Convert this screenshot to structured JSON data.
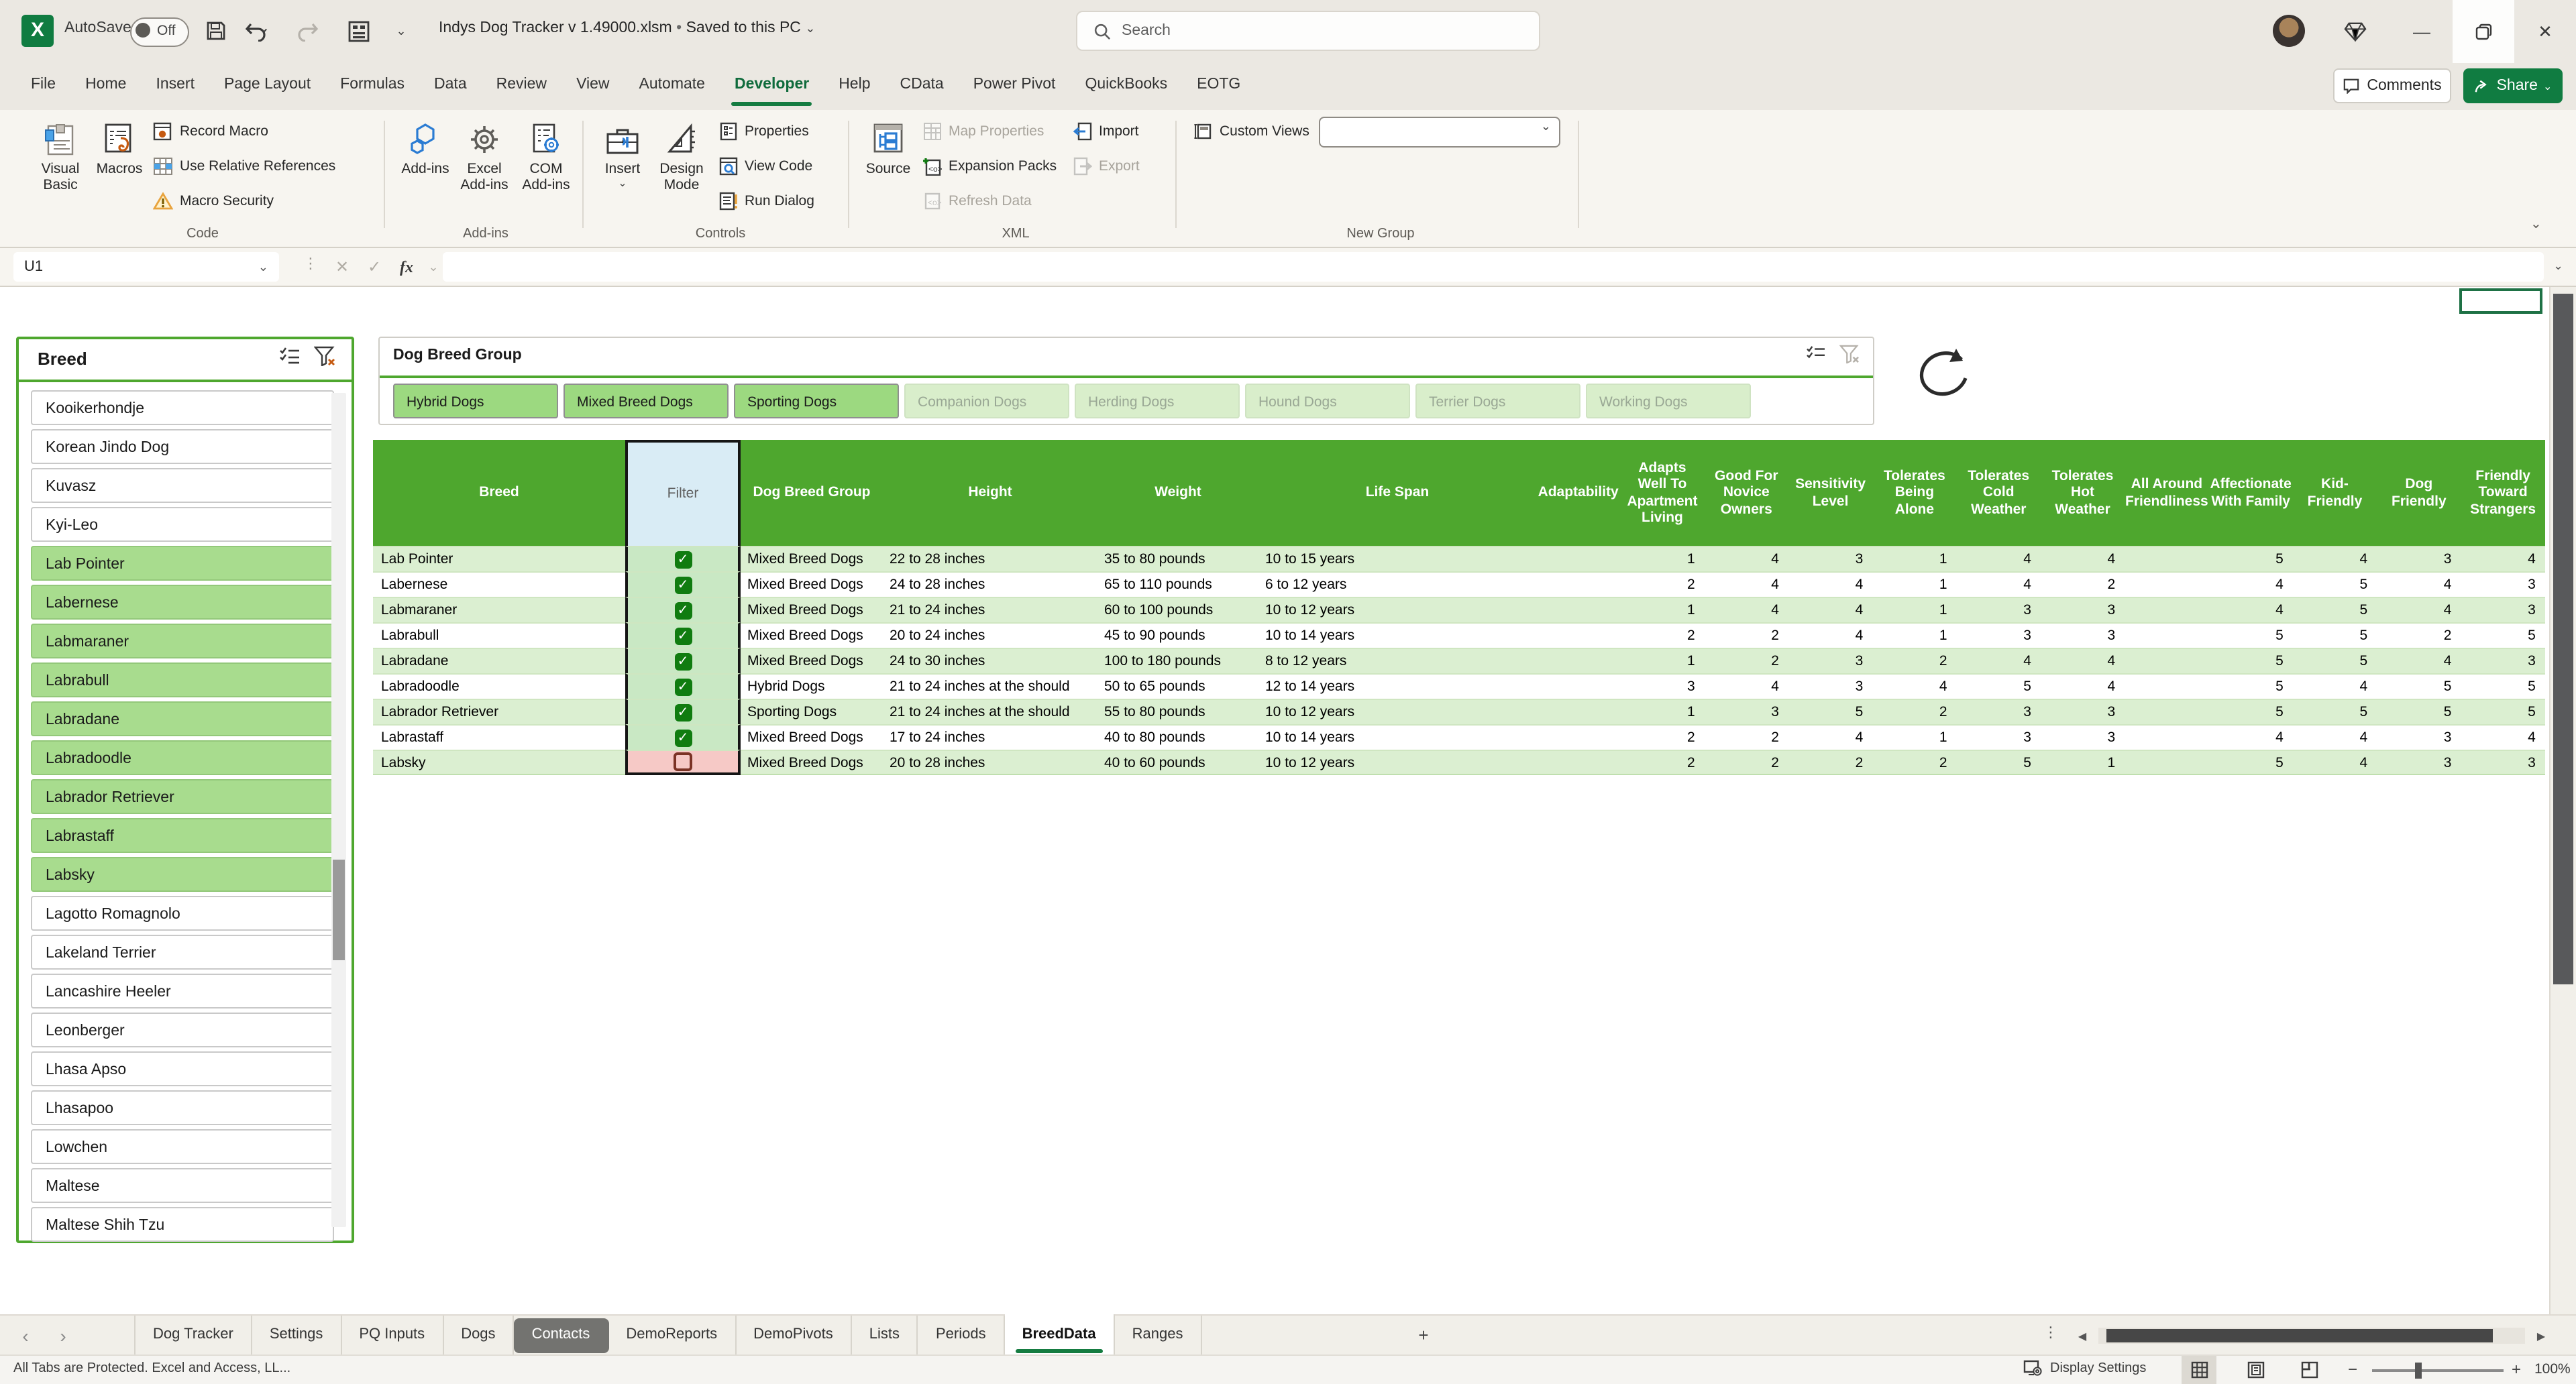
{
  "window": {
    "autosave_label": "AutoSave",
    "autosave_state": "Off",
    "title": "Indys Dog Tracker v 1.49000.xlsm",
    "title_separator": "•",
    "title_suffix": "Saved to this PC",
    "search_placeholder": "Search"
  },
  "ribbon": {
    "tabs": [
      {
        "label": "File",
        "active": false
      },
      {
        "label": "Home",
        "active": false
      },
      {
        "label": "Insert",
        "active": false
      },
      {
        "label": "Page Layout",
        "active": false
      },
      {
        "label": "Formulas",
        "active": false
      },
      {
        "label": "Data",
        "active": false
      },
      {
        "label": "Review",
        "active": false
      },
      {
        "label": "View",
        "active": false
      },
      {
        "label": "Automate",
        "active": false
      },
      {
        "label": "Developer",
        "active": true
      },
      {
        "label": "Help",
        "active": false
      },
      {
        "label": "CData",
        "active": false
      },
      {
        "label": "Power Pivot",
        "active": false
      },
      {
        "label": "QuickBooks",
        "active": false
      },
      {
        "label": "EOTG",
        "active": false
      }
    ],
    "comments_label": "Comments",
    "share_label": "Share",
    "code": {
      "visual_basic": "Visual Basic",
      "macros": "Macros",
      "record_macro": "Record Macro",
      "use_relative_references": "Use Relative References",
      "macro_security": "Macro Security",
      "group_label": "Code"
    },
    "addins": {
      "addins": "Add-ins",
      "excel_addins": "Excel Add-ins",
      "com_addins": "COM Add-ins",
      "group_label": "Add-ins"
    },
    "controls": {
      "insert": "Insert",
      "design_mode": "Design Mode",
      "properties": "Properties",
      "view_code": "View Code",
      "run_dialog": "Run Dialog",
      "group_label": "Controls"
    },
    "xml": {
      "source": "Source",
      "map_properties": "Map Properties",
      "expansion_packs": "Expansion Packs",
      "refresh_data": "Refresh Data",
      "import": "Import",
      "export": "Export",
      "group_label": "XML"
    },
    "new_group": {
      "custom_views": "Custom Views",
      "custom_views_value": "",
      "group_label": "New Group"
    }
  },
  "formula_bar": {
    "cell_reference": "U1",
    "fx_label": "fx",
    "formula_value": ""
  },
  "breed_slicer": {
    "title": "Breed",
    "items": [
      {
        "label": "Kooikerhondje",
        "selected": false
      },
      {
        "label": "Korean Jindo Dog",
        "selected": false
      },
      {
        "label": "Kuvasz",
        "selected": false
      },
      {
        "label": "Kyi-Leo",
        "selected": false
      },
      {
        "label": "Lab Pointer",
        "selected": true
      },
      {
        "label": "Labernese",
        "selected": true
      },
      {
        "label": "Labmaraner",
        "selected": true
      },
      {
        "label": "Labrabull",
        "selected": true
      },
      {
        "label": "Labradane",
        "selected": true
      },
      {
        "label": "Labradoodle",
        "selected": true
      },
      {
        "label": "Labrador Retriever",
        "selected": true
      },
      {
        "label": "Labrastaff",
        "selected": true
      },
      {
        "label": "Labsky",
        "selected": true
      },
      {
        "label": "Lagotto Romagnolo",
        "selected": false
      },
      {
        "label": "Lakeland Terrier",
        "selected": false
      },
      {
        "label": "Lancashire Heeler",
        "selected": false
      },
      {
        "label": "Leonberger",
        "selected": false
      },
      {
        "label": "Lhasa Apso",
        "selected": false
      },
      {
        "label": "Lhasapoo",
        "selected": false
      },
      {
        "label": "Lowchen",
        "selected": false
      },
      {
        "label": "Maltese",
        "selected": false
      },
      {
        "label": "Maltese Shih Tzu",
        "selected": false
      }
    ]
  },
  "group_slicer": {
    "title": "Dog Breed Group",
    "buttons": [
      {
        "label": "Hybrid Dogs",
        "selected": true
      },
      {
        "label": "Mixed Breed Dogs",
        "selected": true
      },
      {
        "label": "Sporting Dogs",
        "selected": true
      },
      {
        "label": "Companion Dogs",
        "selected": false
      },
      {
        "label": "Herding Dogs",
        "selected": false
      },
      {
        "label": "Hound Dogs",
        "selected": false
      },
      {
        "label": "Terrier Dogs",
        "selected": false
      },
      {
        "label": "Working Dogs",
        "selected": false
      }
    ]
  },
  "table": {
    "headers": [
      "Breed",
      "Filter",
      "Dog Breed Group",
      "Height",
      "Weight",
      "Life Span",
      "Adaptability",
      "Adapts Well To Apartment Living",
      "Good For Novice Owners",
      "Sensitivity Level",
      "Tolerates Being Alone",
      "Tolerates Cold Weather",
      "Tolerates Hot Weather",
      "All Around Friendliness",
      "Affectionate With Family",
      "Kid-Friendly",
      "Dog Friendly",
      "Friendly Toward Strangers"
    ],
    "rows": [
      {
        "breed": "Lab Pointer",
        "filter_checked": true,
        "group": "Mixed Breed Dogs",
        "height": "22 to 28 inches",
        "weight": "35 to 80 pounds",
        "life_span": "10 to 15 years",
        "ratings": [
          "",
          "1",
          "4",
          "3",
          "1",
          "4",
          "4",
          "",
          "5",
          "4",
          "3",
          "4"
        ]
      },
      {
        "breed": "Labernese",
        "filter_checked": true,
        "group": "Mixed Breed Dogs",
        "height": "24 to 28 inches",
        "weight": "65 to 110 pounds",
        "life_span": "6 to 12 years",
        "ratings": [
          "",
          "2",
          "4",
          "4",
          "1",
          "4",
          "2",
          "",
          "4",
          "5",
          "4",
          "3"
        ]
      },
      {
        "breed": "Labmaraner",
        "filter_checked": true,
        "group": "Mixed Breed Dogs",
        "height": "21 to 24 inches",
        "weight": "60 to 100 pounds",
        "life_span": "10 to 12 years",
        "ratings": [
          "",
          "1",
          "4",
          "4",
          "1",
          "3",
          "3",
          "",
          "4",
          "5",
          "4",
          "3"
        ]
      },
      {
        "breed": "Labrabull",
        "filter_checked": true,
        "group": "Mixed Breed Dogs",
        "height": "20 to 24 inches",
        "weight": "45 to 90 pounds",
        "life_span": "10 to 14 years",
        "ratings": [
          "",
          "2",
          "2",
          "4",
          "1",
          "3",
          "3",
          "",
          "5",
          "5",
          "2",
          "5"
        ]
      },
      {
        "breed": "Labradane",
        "filter_checked": true,
        "group": "Mixed Breed Dogs",
        "height": "24 to 30 inches",
        "weight": "100 to 180 pounds",
        "life_span": "8 to 12 years",
        "ratings": [
          "",
          "1",
          "2",
          "3",
          "2",
          "4",
          "4",
          "",
          "5",
          "5",
          "4",
          "3"
        ]
      },
      {
        "breed": "Labradoodle",
        "filter_checked": true,
        "group": "Hybrid Dogs",
        "height": "21 to 24 inches at the should",
        "weight": "50 to 65 pounds",
        "life_span": "12 to 14 years",
        "ratings": [
          "",
          "3",
          "4",
          "3",
          "4",
          "5",
          "4",
          "",
          "5",
          "4",
          "5",
          "5"
        ]
      },
      {
        "breed": "Labrador Retriever",
        "filter_checked": true,
        "group": "Sporting Dogs",
        "height": "21 to 24 inches at the should",
        "weight": "55 to 80 pounds",
        "life_span": "10 to 12 years",
        "ratings": [
          "",
          "1",
          "3",
          "5",
          "2",
          "3",
          "3",
          "",
          "5",
          "5",
          "5",
          "5"
        ]
      },
      {
        "breed": "Labrastaff",
        "filter_checked": true,
        "group": "Mixed Breed Dogs",
        "height": "17 to 24 inches",
        "weight": "40 to 80 pounds",
        "life_span": "10 to 14 years",
        "ratings": [
          "",
          "2",
          "2",
          "4",
          "1",
          "3",
          "3",
          "",
          "4",
          "4",
          "3",
          "4"
        ]
      },
      {
        "breed": "Labsky",
        "filter_checked": false,
        "group": "Mixed Breed Dogs",
        "height": "20 to 28 inches",
        "weight": "40 to 60 pounds",
        "life_span": "10 to 12 years",
        "ratings": [
          "",
          "2",
          "2",
          "2",
          "2",
          "5",
          "1",
          "",
          "5",
          "4",
          "3",
          "3"
        ]
      }
    ]
  },
  "sheet_bar": {
    "tabs": [
      {
        "label": "Dog Tracker",
        "state": "normal"
      },
      {
        "label": "Settings",
        "state": "normal"
      },
      {
        "label": "PQ Inputs",
        "state": "normal"
      },
      {
        "label": "Dogs",
        "state": "normal"
      },
      {
        "label": "Contacts",
        "state": "dark"
      },
      {
        "label": "DemoReports",
        "state": "normal"
      },
      {
        "label": "DemoPivots",
        "state": "normal"
      },
      {
        "label": "Lists",
        "state": "normal"
      },
      {
        "label": "Periods",
        "state": "normal"
      },
      {
        "label": "BreedData",
        "state": "active"
      },
      {
        "label": "Ranges",
        "state": "normal"
      }
    ],
    "add_sheet_label": "+"
  },
  "status_bar": {
    "left_text": "All Tabs are Protected.  Excel and Access, LL...",
    "display_settings_label": "Display Settings",
    "zoom_level": "100%"
  },
  "colors": {
    "accent_green": "#107C41",
    "table_header_green": "#4EA72E",
    "row_band_green": "#DBEFD1",
    "filter_cell_green": "#C9E8C4",
    "filter_unchecked_pink": "#F6C9C6",
    "filter_header_blue": "#D9ECF5",
    "checkbox_green": "#107C10",
    "slicer_selected_green": "#A8DC8E",
    "slicer_button_selected": "#9CD980",
    "slicer_button_unselected": "#D9EECB",
    "tab_dark_gray": "#737370"
  }
}
